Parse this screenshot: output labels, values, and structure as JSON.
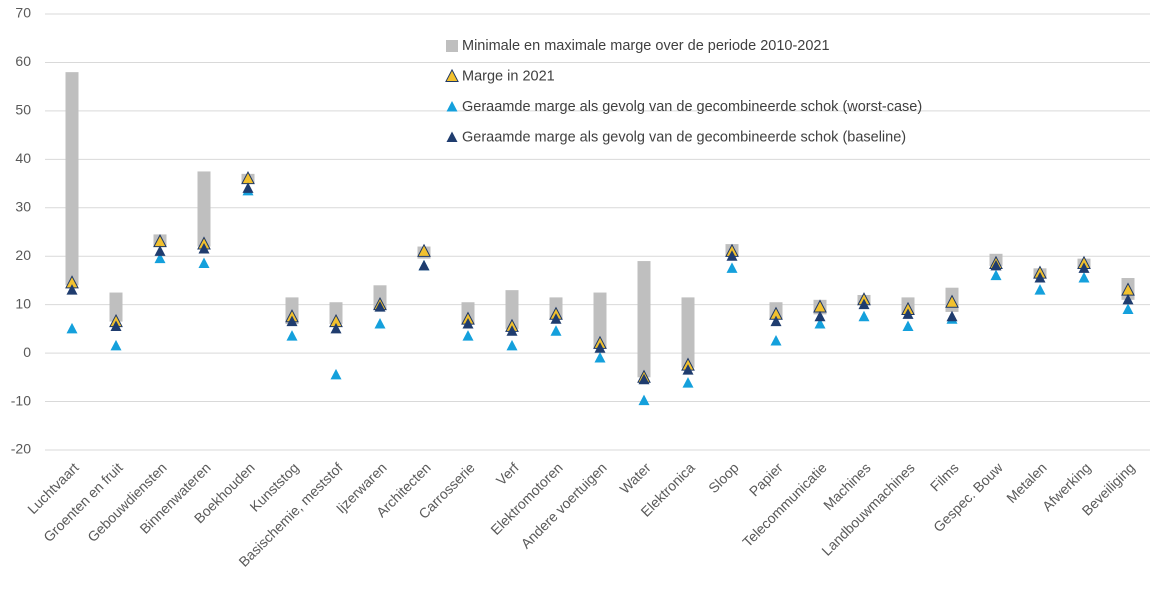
{
  "chart_data": {
    "type": "range_marker",
    "categories": [
      "Luchtvaart",
      "Groenten en fruit",
      "Gebouwdiensten",
      "Binnenwateren",
      "Boekhouden",
      "Kunststog",
      "Basischemie, meststof",
      "Ijzerwaren",
      "Architecten",
      "Carrosserie",
      "Verf",
      "Elektromotoren",
      "Andere voertuigen",
      "Water",
      "Elektronica",
      "Sloop",
      "Papier",
      "Telecommunicatie",
      "Machines",
      "Landbouwmachines",
      "Films",
      "Gespec. Bouw",
      "Metalen",
      "Afwerking",
      "Beveiliging"
    ],
    "series": [
      {
        "name": "Minimale en maximale marge over de periode 2010-2021",
        "color": "#bfbfbf",
        "marker": "range",
        "low": [
          14,
          6.5,
          22,
          22,
          35,
          6,
          6,
          9,
          19.5,
          6,
          5,
          7,
          1,
          -5,
          -3,
          20,
          7,
          8,
          10,
          8,
          8.5,
          18,
          15.5,
          17.5,
          11
        ],
        "high": [
          58,
          12.5,
          24.5,
          37.5,
          37,
          11.5,
          10.5,
          14,
          22,
          10.5,
          13,
          11.5,
          12.5,
          19,
          11.5,
          22.5,
          10.5,
          11,
          12,
          11.5,
          13.5,
          20.5,
          17.5,
          19.5,
          15.5
        ]
      },
      {
        "name": "Marge in 2021",
        "color": "#f2c12e",
        "edgecolor": "#1f3864",
        "marker": "triangle",
        "values": [
          14.5,
          6.5,
          23,
          22.5,
          36,
          7.5,
          6.5,
          10,
          21,
          7,
          5.5,
          8,
          2,
          -5,
          -2.5,
          21,
          8,
          9.5,
          11,
          9,
          10.5,
          18.5,
          16.5,
          18.5,
          13
        ]
      },
      {
        "name": "Geraamde marge als gevolg van de gecombineerde schok (worst-case)",
        "color": "#14a0dc",
        "marker": "triangle",
        "values": [
          5,
          1.5,
          19.5,
          18.5,
          33.5,
          3.5,
          -4.5,
          6,
          18,
          3.5,
          1.5,
          4.5,
          -1,
          -9.8,
          -6.2,
          17.5,
          2.5,
          6,
          7.5,
          5.5,
          7,
          16,
          13,
          15.5,
          9
        ]
      },
      {
        "name": "Geraamde marge als gevolg van de gecombineerde schok (baseline)",
        "color": "#1f3c6e",
        "marker": "triangle",
        "values": [
          13,
          5.5,
          21,
          21.5,
          34,
          6.5,
          5,
          9.5,
          18,
          6,
          4.5,
          7,
          1,
          -5.5,
          -3.5,
          20,
          6.5,
          7.5,
          10,
          8,
          7.5,
          18,
          15.5,
          17.5,
          11
        ]
      }
    ],
    "ylim": [
      -20,
      70
    ],
    "yticks": [
      -20,
      -10,
      0,
      10,
      20,
      30,
      40,
      50,
      60,
      70
    ],
    "grid": true
  }
}
